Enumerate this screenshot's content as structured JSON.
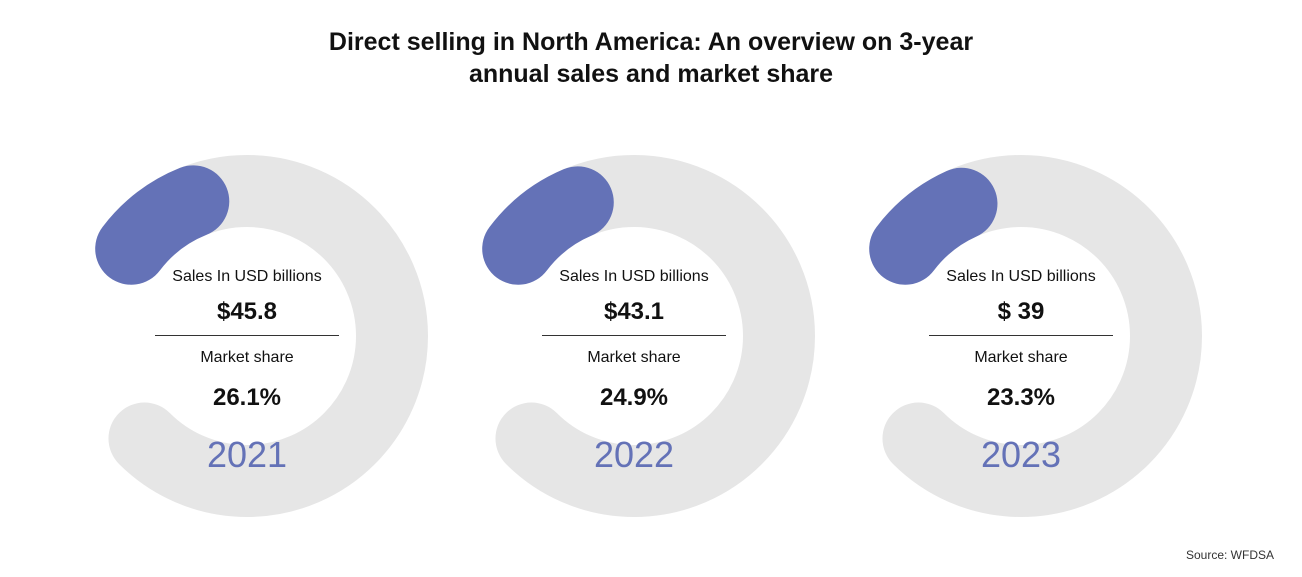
{
  "title_lines": [
    "Direct selling in North America: An overview on 3-year",
    "annual sales and market share"
  ],
  "colors": {
    "track": "#e6e6e6",
    "accent": "#6472b7",
    "text": "#111111"
  },
  "chart_data": {
    "type": "gauge",
    "title": "Direct selling in North America: An overview on 3-year annual sales and market share",
    "source": "Source: WFDSA",
    "items": [
      {
        "year": "2021",
        "sales_label": "Sales In USD billions",
        "sales_value": "$45.8",
        "share_label": "Market share",
        "share_value": "26.1%",
        "share_percent": 26.1
      },
      {
        "year": "2022",
        "sales_label": "Sales In USD billions",
        "sales_value": "$43.1",
        "share_label": "Market share",
        "share_value": "24.9%",
        "share_percent": 24.9
      },
      {
        "year": "2023",
        "sales_label": "Sales In USD billions",
        "sales_value": "$ 39",
        "share_label": "Market share",
        "share_value": "23.3%",
        "share_percent": 23.3
      }
    ]
  }
}
